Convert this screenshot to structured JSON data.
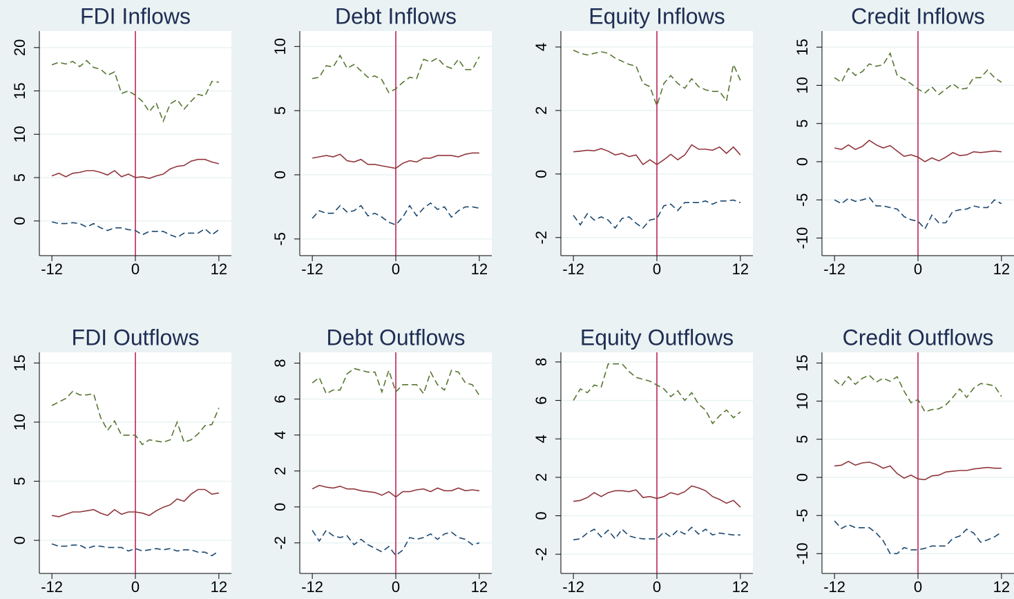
{
  "chart_data": [
    {
      "type": "line",
      "title": "FDI Inflows",
      "x": [
        -12,
        -11,
        -10,
        -9,
        -8,
        -7,
        -6,
        -5,
        -4,
        -3,
        -2,
        -1,
        0,
        1,
        2,
        3,
        4,
        5,
        6,
        7,
        8,
        9,
        10,
        11,
        12
      ],
      "xlim": [
        -13.8,
        13.8
      ],
      "xticks": [
        -12,
        0,
        12
      ],
      "ylim": [
        -4,
        21.9
      ],
      "yticks": [
        0,
        5,
        10,
        15,
        20
      ],
      "grid": true,
      "vline": 0,
      "vline_color": "#b5174b",
      "series": [
        {
          "color": "#55752f",
          "dash": true,
          "values": [
            18,
            18.3,
            18.1,
            18.4,
            17.8,
            18.5,
            17.7,
            17.5,
            16.8,
            17.2,
            14.7,
            15,
            14.5,
            13.8,
            12.6,
            13.6,
            11.5,
            13.5,
            14,
            12.9,
            13.8,
            14.6,
            14.4,
            16.1,
            16
          ]
        },
        {
          "color": "#90353b",
          "dash": false,
          "values": [
            5.2,
            5.5,
            5.1,
            5.5,
            5.6,
            5.8,
            5.8,
            5.6,
            5.3,
            5.8,
            5.1,
            5.4,
            5.0,
            5.1,
            4.9,
            5.2,
            5.4,
            6.0,
            6.3,
            6.4,
            6.9,
            7.1,
            7.1,
            6.8,
            6.6
          ]
        },
        {
          "color": "#1a476f",
          "dash": true,
          "values": [
            -0.1,
            -0.3,
            -0.3,
            -0.2,
            -0.3,
            -0.7,
            -0.3,
            -0.8,
            -1.1,
            -0.8,
            -0.8,
            -1.0,
            -1.1,
            -1.6,
            -1.2,
            -1.2,
            -1.2,
            -1.6,
            -1.9,
            -1.4,
            -1.4,
            -1.4,
            -0.9,
            -1.6,
            -1.0
          ]
        }
      ]
    },
    {
      "type": "line",
      "title": "Debt Inflows",
      "x": [
        -12,
        -11,
        -10,
        -9,
        -8,
        -7,
        -6,
        -5,
        -4,
        -3,
        -2,
        -1,
        0,
        1,
        2,
        3,
        4,
        5,
        6,
        7,
        8,
        9,
        10,
        11,
        12
      ],
      "xlim": [
        -13.8,
        13.8
      ],
      "xticks": [
        -12,
        0,
        12
      ],
      "ylim": [
        -6.3,
        11.2
      ],
      "yticks": [
        -5,
        0,
        5,
        10
      ],
      "grid": true,
      "vline": 0,
      "vline_color": "#b5174b",
      "series": [
        {
          "color": "#55752f",
          "dash": true,
          "values": [
            7.5,
            7.6,
            8.5,
            8.4,
            9.3,
            8.3,
            8.6,
            8.1,
            7.6,
            7.7,
            7.4,
            6.4,
            6.7,
            7.2,
            7.6,
            7.5,
            9.0,
            8.8,
            9.1,
            8.5,
            8.3,
            9.0,
            8.2,
            8.2,
            9.2
          ]
        },
        {
          "color": "#90353b",
          "dash": false,
          "values": [
            1.3,
            1.4,
            1.5,
            1.4,
            1.6,
            1.1,
            1.0,
            1.2,
            0.8,
            0.8,
            0.7,
            0.6,
            0.5,
            0.9,
            1.1,
            1.0,
            1.3,
            1.3,
            1.5,
            1.5,
            1.5,
            1.4,
            1.6,
            1.7,
            1.7
          ]
        },
        {
          "color": "#1a476f",
          "dash": true,
          "values": [
            -3.4,
            -2.8,
            -3.0,
            -3.0,
            -2.4,
            -2.9,
            -2.8,
            -2.4,
            -3.2,
            -3.0,
            -3.3,
            -3.7,
            -3.9,
            -3.3,
            -2.4,
            -3.2,
            -2.6,
            -2.2,
            -2.7,
            -2.5,
            -3.3,
            -2.8,
            -2.5,
            -2.5,
            -2.6
          ]
        }
      ]
    },
    {
      "type": "line",
      "title": "Equity Inflows",
      "x": [
        -12,
        -11,
        -10,
        -9,
        -8,
        -7,
        -6,
        -5,
        -4,
        -3,
        -2,
        -1,
        0,
        1,
        2,
        3,
        4,
        5,
        6,
        7,
        8,
        9,
        10,
        11,
        12
      ],
      "xlim": [
        -13.8,
        13.8
      ],
      "xticks": [
        -12,
        0,
        12
      ],
      "ylim": [
        -2.57,
        4.5
      ],
      "yticks": [
        -2,
        0,
        2,
        4
      ],
      "grid": true,
      "vline": 0,
      "vline_color": "#b5174b",
      "series": [
        {
          "color": "#55752f",
          "dash": true,
          "values": [
            3.9,
            3.8,
            3.75,
            3.8,
            3.85,
            3.8,
            3.65,
            3.55,
            3.45,
            3.4,
            2.85,
            2.75,
            2.15,
            2.85,
            3.1,
            2.85,
            2.7,
            3.0,
            2.75,
            2.65,
            2.6,
            2.6,
            2.3,
            3.45,
            2.95
          ]
        },
        {
          "color": "#90353b",
          "dash": false,
          "values": [
            0.7,
            0.72,
            0.75,
            0.73,
            0.8,
            0.72,
            0.6,
            0.65,
            0.55,
            0.6,
            0.3,
            0.45,
            0.3,
            0.45,
            0.62,
            0.45,
            0.6,
            0.92,
            0.78,
            0.78,
            0.75,
            0.85,
            0.65,
            0.85,
            0.6
          ]
        },
        {
          "color": "#1a476f",
          "dash": true,
          "values": [
            -1.3,
            -1.6,
            -1.25,
            -1.45,
            -1.35,
            -1.45,
            -1.7,
            -1.4,
            -1.35,
            -1.55,
            -1.7,
            -1.45,
            -1.4,
            -1.0,
            -0.95,
            -1.15,
            -0.9,
            -0.9,
            -0.9,
            -0.85,
            -0.95,
            -0.85,
            -0.85,
            -0.82,
            -0.9
          ]
        }
      ]
    },
    {
      "type": "line",
      "title": "Credit Inflows",
      "x": [
        -12,
        -11,
        -10,
        -9,
        -8,
        -7,
        -6,
        -5,
        -4,
        -3,
        -2,
        -1,
        0,
        1,
        2,
        3,
        4,
        5,
        6,
        7,
        8,
        9,
        10,
        11,
        12
      ],
      "xlim": [
        -13.8,
        13.8
      ],
      "xticks": [
        -12,
        0,
        12
      ],
      "ylim": [
        -12.3,
        17.1
      ],
      "yticks": [
        -10,
        -5,
        0,
        5,
        10,
        15
      ],
      "grid": true,
      "vline": 0,
      "vline_color": "#b5174b",
      "series": [
        {
          "color": "#55752f",
          "dash": true,
          "values": [
            11,
            10.4,
            12.2,
            11.3,
            11.8,
            12.8,
            12.5,
            12.7,
            14.2,
            11.3,
            10.8,
            10.2,
            9.5,
            9.0,
            9.8,
            8.8,
            9.5,
            10.2,
            9.5,
            9.6,
            11,
            11,
            12,
            11,
            10.4
          ]
        },
        {
          "color": "#90353b",
          "dash": false,
          "values": [
            1.8,
            1.6,
            2.2,
            1.6,
            2.0,
            2.8,
            2.2,
            1.8,
            2.1,
            1.4,
            0.7,
            0.9,
            0.6,
            0.0,
            0.5,
            0.1,
            0.6,
            1.2,
            0.8,
            0.9,
            1.3,
            1.2,
            1.3,
            1.4,
            1.3
          ]
        },
        {
          "color": "#1a476f",
          "dash": true,
          "values": [
            -5,
            -5.5,
            -4.8,
            -5.2,
            -5.0,
            -4.7,
            -5.8,
            -5.8,
            -6,
            -6.2,
            -7.2,
            -7.6,
            -7.8,
            -8.8,
            -7.0,
            -8.0,
            -8.0,
            -6.5,
            -6.3,
            -6.2,
            -5.8,
            -6.0,
            -6.0,
            -5.0,
            -5.5
          ]
        }
      ]
    },
    {
      "type": "line",
      "title": "FDI Outflows",
      "x": [
        -12,
        -11,
        -10,
        -9,
        -8,
        -7,
        -6,
        -5,
        -4,
        -3,
        -2,
        -1,
        0,
        1,
        2,
        3,
        4,
        5,
        6,
        7,
        8,
        9,
        10,
        11,
        12
      ],
      "xlim": [
        -13.8,
        13.8
      ],
      "xticks": [
        -12,
        0,
        12
      ],
      "ylim": [
        -2.8,
        15.9
      ],
      "yticks": [
        0,
        5,
        10,
        15
      ],
      "grid": true,
      "vline": 0,
      "vline_color": "#b5174b",
      "series": [
        {
          "color": "#55752f",
          "dash": true,
          "values": [
            11.4,
            11.7,
            12,
            12.6,
            12.3,
            12.3,
            12.4,
            10.4,
            9.3,
            10.1,
            8.9,
            8.9,
            8.9,
            8.1,
            8.5,
            8.4,
            8.3,
            8.5,
            10,
            8.3,
            8.5,
            9,
            9.7,
            9.8,
            11.2
          ]
        },
        {
          "color": "#90353b",
          "dash": false,
          "values": [
            2.1,
            2.0,
            2.2,
            2.4,
            2.4,
            2.5,
            2.6,
            2.3,
            2.1,
            2.6,
            2.2,
            2.4,
            2.4,
            2.3,
            2.1,
            2.5,
            2.8,
            3.0,
            3.5,
            3.3,
            3.9,
            4.3,
            4.3,
            3.9,
            4.0
          ]
        },
        {
          "color": "#1a476f",
          "dash": true,
          "values": [
            -0.3,
            -0.5,
            -0.5,
            -0.4,
            -0.4,
            -0.7,
            -0.5,
            -0.5,
            -0.6,
            -0.6,
            -0.6,
            -0.9,
            -0.7,
            -0.9,
            -0.8,
            -0.7,
            -0.8,
            -0.7,
            -0.9,
            -0.8,
            -0.8,
            -1.0,
            -1.0,
            -1.3,
            -0.9
          ]
        }
      ]
    },
    {
      "type": "line",
      "title": "Debt Outflows",
      "x": [
        -12,
        -11,
        -10,
        -9,
        -8,
        -7,
        -6,
        -5,
        -4,
        -3,
        -2,
        -1,
        0,
        1,
        2,
        3,
        4,
        5,
        6,
        7,
        8,
        9,
        10,
        11,
        12
      ],
      "xlim": [
        -13.8,
        13.8
      ],
      "xticks": [
        -12,
        0,
        12
      ],
      "ylim": [
        -3.7,
        8.6
      ],
      "yticks": [
        -2,
        0,
        2,
        4,
        6,
        8
      ],
      "grid": true,
      "vline": 0,
      "vline_color": "#b5174b",
      "series": [
        {
          "color": "#55752f",
          "dash": true,
          "values": [
            6.9,
            7.2,
            6.3,
            6.5,
            6.5,
            7.4,
            7.7,
            7.6,
            7.5,
            7.5,
            6.4,
            7.6,
            6.4,
            6.8,
            6.8,
            6.8,
            6.3,
            7.5,
            6.8,
            6.5,
            7.6,
            7.5,
            6.9,
            6.8,
            6.2
          ]
        },
        {
          "color": "#90353b",
          "dash": false,
          "values": [
            1.0,
            1.2,
            1.1,
            1.05,
            1.15,
            1.0,
            1.0,
            0.9,
            0.85,
            0.8,
            0.65,
            0.85,
            0.55,
            0.85,
            0.85,
            0.95,
            1.0,
            0.85,
            1.05,
            0.9,
            0.9,
            1.05,
            0.9,
            0.95,
            0.9
          ]
        },
        {
          "color": "#1a476f",
          "dash": true,
          "values": [
            -1.3,
            -1.9,
            -1.3,
            -1.6,
            -1.7,
            -1.6,
            -2.1,
            -1.8,
            -2.1,
            -2.3,
            -2.5,
            -2.2,
            -2.7,
            -2.4,
            -1.7,
            -1.8,
            -1.7,
            -1.5,
            -1.8,
            -1.5,
            -1.4,
            -1.7,
            -1.8,
            -2.1,
            -2.0
          ]
        }
      ]
    },
    {
      "type": "line",
      "title": "Equity Outflows",
      "x": [
        -12,
        -11,
        -10,
        -9,
        -8,
        -7,
        -6,
        -5,
        -4,
        -3,
        -2,
        -1,
        0,
        1,
        2,
        3,
        4,
        5,
        6,
        7,
        8,
        9,
        10,
        11,
        12
      ],
      "xlim": [
        -13.8,
        13.8
      ],
      "xticks": [
        -12,
        0,
        12
      ],
      "ylim": [
        -3,
        8.5
      ],
      "yticks": [
        -2,
        0,
        2,
        4,
        6,
        8
      ],
      "grid": true,
      "vline": 0,
      "vline_color": "#b5174b",
      "series": [
        {
          "color": "#55752f",
          "dash": true,
          "values": [
            6.0,
            6.6,
            6.4,
            6.8,
            6.7,
            7.9,
            7.9,
            7.9,
            7.5,
            7.2,
            7.1,
            7.0,
            6.8,
            6.6,
            6.2,
            6.5,
            6.0,
            6.4,
            5.8,
            5.5,
            4.8,
            5.2,
            5.5,
            5.1,
            5.4
          ]
        },
        {
          "color": "#90353b",
          "dash": false,
          "values": [
            0.75,
            0.8,
            0.95,
            1.2,
            1.0,
            1.2,
            1.3,
            1.3,
            1.25,
            1.35,
            0.95,
            1.0,
            0.9,
            1.0,
            1.2,
            1.1,
            1.25,
            1.55,
            1.45,
            1.3,
            1.0,
            0.85,
            0.65,
            0.8,
            0.45
          ]
        },
        {
          "color": "#1a476f",
          "dash": true,
          "values": [
            -1.25,
            -1.2,
            -0.9,
            -0.7,
            -1.1,
            -0.75,
            -1.2,
            -0.7,
            -1.05,
            -1.15,
            -1.2,
            -1.2,
            -1.2,
            -0.85,
            -1.1,
            -0.75,
            -0.95,
            -0.6,
            -0.95,
            -0.7,
            -1.0,
            -0.9,
            -0.95,
            -1.0,
            -1.0
          ]
        }
      ]
    },
    {
      "type": "line",
      "title": "Credit Outflows",
      "x": [
        -12,
        -11,
        -10,
        -9,
        -8,
        -7,
        -6,
        -5,
        -4,
        -3,
        -2,
        -1,
        0,
        1,
        2,
        3,
        4,
        5,
        6,
        7,
        8,
        9,
        10,
        11,
        12
      ],
      "xlim": [
        -13.8,
        13.8
      ],
      "xticks": [
        -12,
        0,
        12
      ],
      "ylim": [
        -12.6,
        16.4
      ],
      "yticks": [
        -10,
        -5,
        0,
        5,
        10,
        15
      ],
      "grid": true,
      "vline": 0,
      "vline_color": "#b5174b",
      "series": [
        {
          "color": "#55752f",
          "dash": true,
          "values": [
            12.8,
            12,
            13.2,
            12.2,
            13,
            13.4,
            12.5,
            13,
            12.6,
            13.2,
            11.3,
            9.8,
            10.2,
            8.6,
            8.9,
            9,
            9.5,
            10.5,
            11.6,
            10.5,
            11.7,
            12.3,
            12.2,
            12,
            10.6
          ]
        },
        {
          "color": "#90353b",
          "dash": false,
          "values": [
            1.5,
            1.6,
            2.1,
            1.6,
            1.9,
            2.0,
            1.7,
            1.2,
            1.5,
            0.5,
            -0.1,
            0.3,
            -0.2,
            -0.3,
            0.2,
            0.3,
            0.7,
            0.8,
            0.9,
            0.9,
            1.1,
            1.2,
            1.3,
            1.2,
            1.2
          ]
        },
        {
          "color": "#1a476f",
          "dash": true,
          "values": [
            -5.7,
            -6.7,
            -6.2,
            -6.6,
            -6.6,
            -6.6,
            -7.3,
            -8.3,
            -10,
            -10,
            -9.2,
            -9.5,
            -9.5,
            -9.3,
            -9,
            -9,
            -9,
            -8,
            -7.7,
            -6.8,
            -7.3,
            -8.5,
            -8.2,
            -7.8,
            -7.2
          ]
        }
      ]
    }
  ]
}
